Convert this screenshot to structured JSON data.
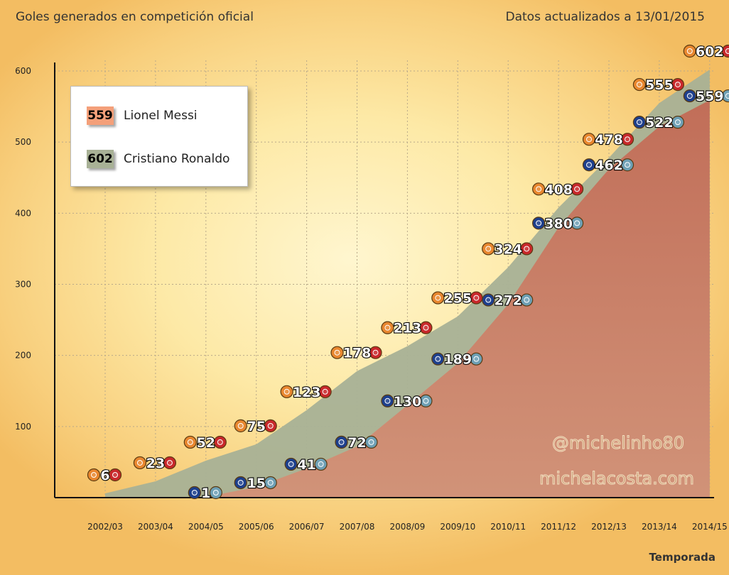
{
  "header": {
    "title": "Goles generados en competición oficial",
    "updated": "Datos actualizados a 13/01/2015"
  },
  "legend": {
    "messi": {
      "value": "559",
      "name": "Lionel Messi",
      "color": "#f4a07a"
    },
    "ronaldo": {
      "value": "602",
      "name": "Cristiano Ronaldo",
      "color": "#a8b196"
    }
  },
  "watermark": {
    "handle": "@michelinho80",
    "site": "michelacosta.com"
  },
  "chart_data": {
    "type": "area",
    "title": "Goles generados en competición oficial",
    "xlabel": "Temporada",
    "ylabel": "",
    "categories": [
      "2002/03",
      "2003/04",
      "2004/05",
      "2005/06",
      "2006/07",
      "2007/08",
      "2008/09",
      "2009/10",
      "2010/11",
      "2011/12",
      "2012/13",
      "2013/14",
      "2014/15"
    ],
    "yticks": [
      100,
      200,
      300,
      400,
      500,
      600
    ],
    "ylim": [
      0,
      620
    ],
    "grid": true,
    "legend_position": "top-left",
    "series": [
      {
        "name": "Cristiano Ronaldo",
        "color": "#a8b196",
        "values": [
          6,
          23,
          52,
          75,
          123,
          178,
          213,
          255,
          324,
          408,
          478,
          555,
          602
        ]
      },
      {
        "name": "Lionel Messi",
        "color": "#c77d69",
        "values": [
          null,
          null,
          1,
          15,
          41,
          72,
          130,
          189,
          272,
          380,
          462,
          522,
          559
        ]
      }
    ]
  }
}
